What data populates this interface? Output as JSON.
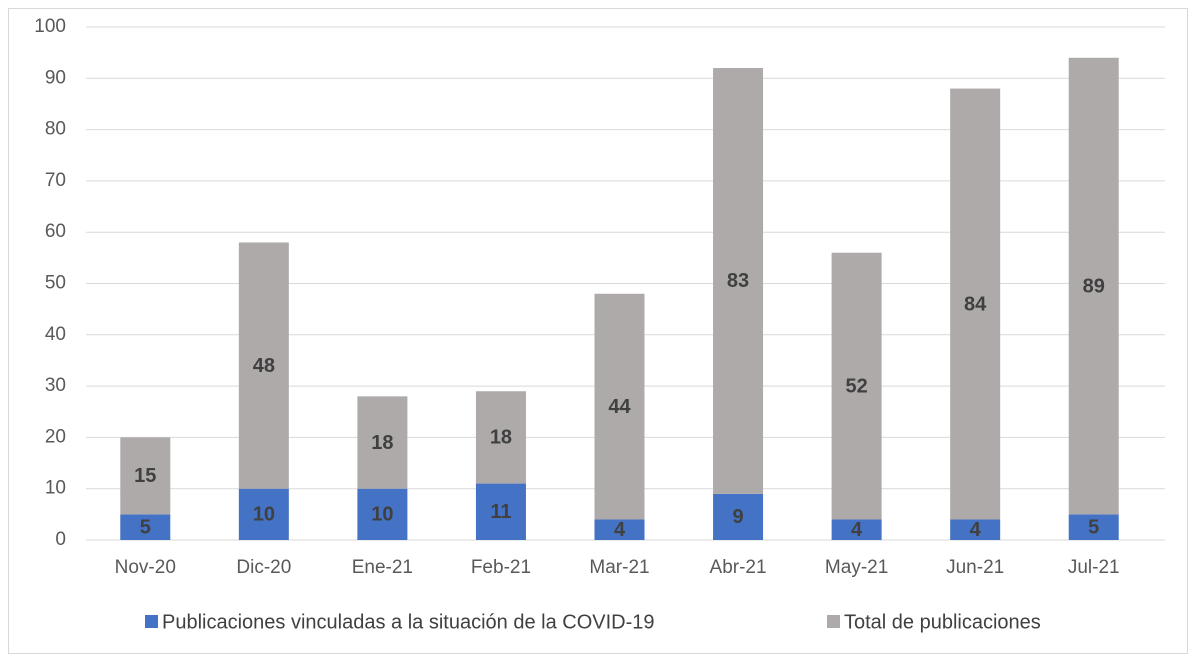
{
  "chart_data": {
    "type": "stacked_bar",
    "categories": [
      "Nov-20",
      "Dic-20",
      "Ene-21",
      "Feb-21",
      "Mar-21",
      "Abr-21",
      "May-21",
      "Jun-21",
      "Jul-21"
    ],
    "series": [
      {
        "name": "Publicaciones vinculadas a la situación de la COVID-19",
        "color": "#4472c4",
        "values": [
          5,
          10,
          10,
          11,
          4,
          9,
          4,
          4,
          5
        ]
      },
      {
        "name": "Total de publicaciones",
        "color": "#aeaaaa",
        "values": [
          15,
          48,
          18,
          18,
          44,
          83,
          52,
          84,
          89
        ]
      }
    ],
    "ylim": [
      0,
      100
    ],
    "yticks": [
      0,
      10,
      20,
      30,
      40,
      50,
      60,
      70,
      80,
      90,
      100
    ],
    "grid": true,
    "legend": "bottom"
  }
}
